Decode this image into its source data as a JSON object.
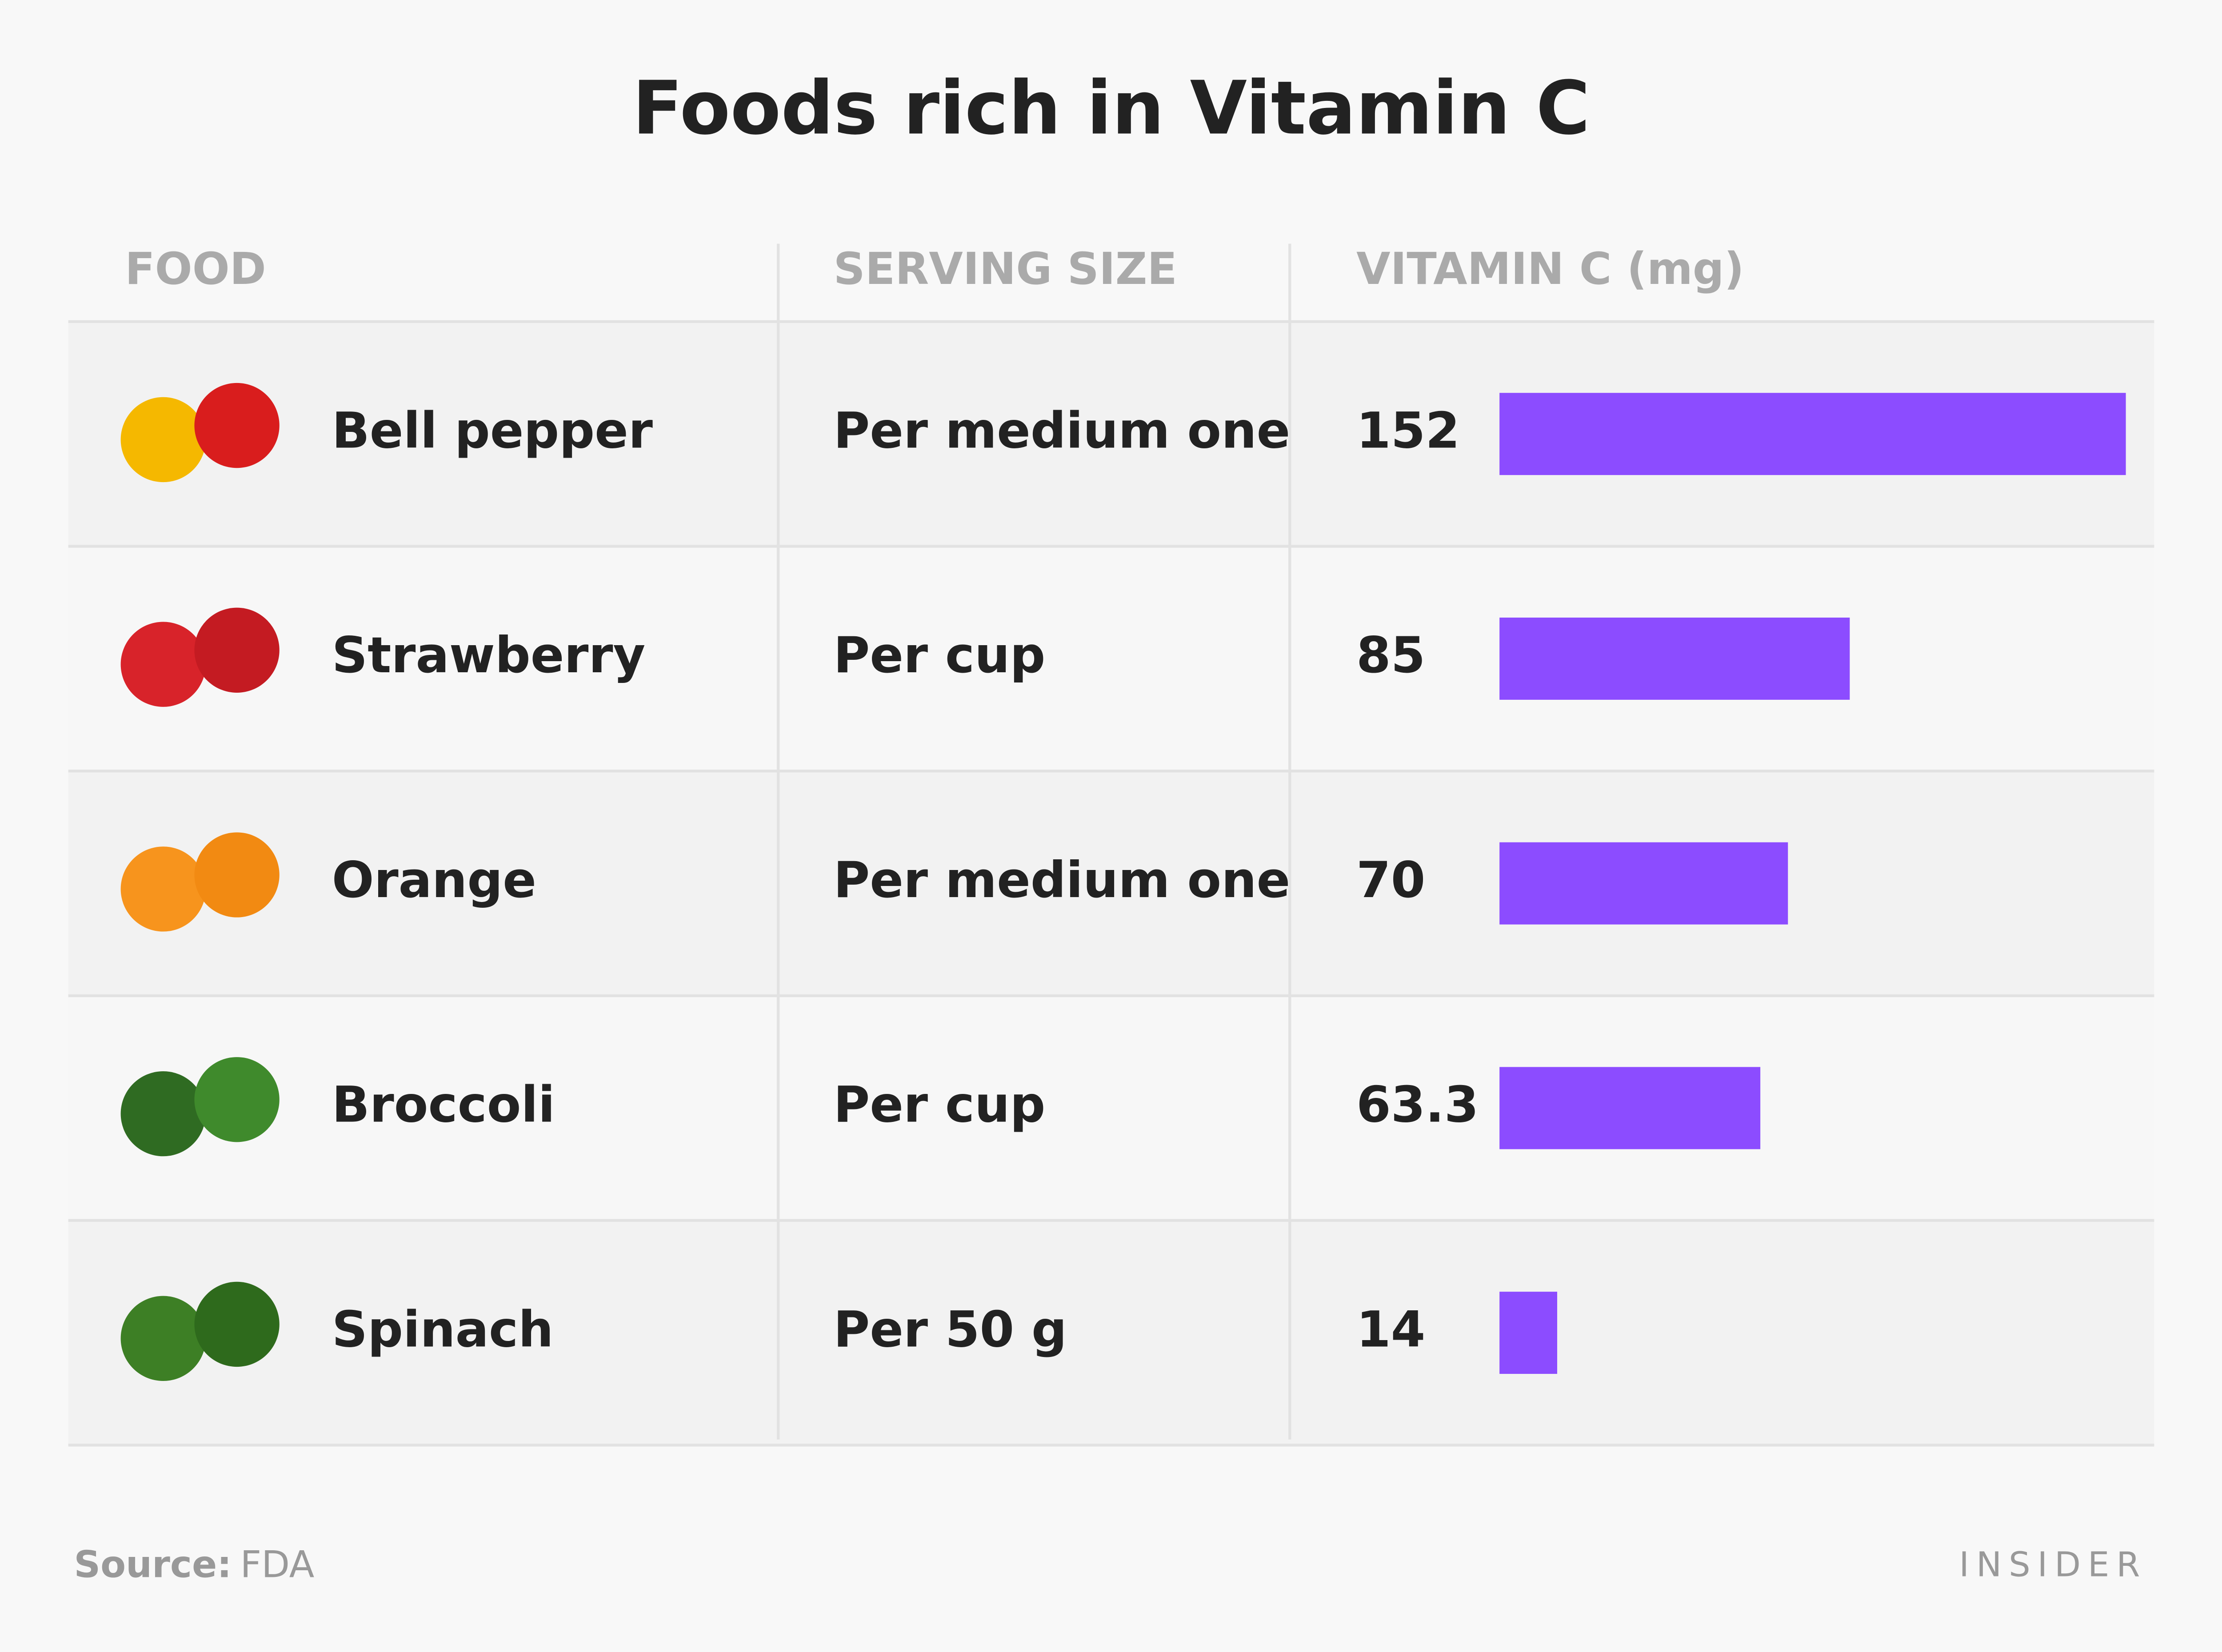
{
  "chart_data": {
    "type": "bar",
    "title": "Foods rich in Vitamin C",
    "columns": [
      "FOOD",
      "SERVING SIZE",
      "VITAMIN C (mg)"
    ],
    "categories": [
      "Bell pepper",
      "Strawberry",
      "Orange",
      "Broccoli",
      "Spinach"
    ],
    "serving_sizes": [
      "Per medium one",
      "Per cup",
      "Per medium one",
      "Per cup",
      "Per 50 g"
    ],
    "values": [
      152,
      85,
      70,
      63.3,
      14
    ],
    "color": "#8c4cff",
    "source_label": "Source:",
    "source": "FDA",
    "brand": "INSIDER"
  }
}
